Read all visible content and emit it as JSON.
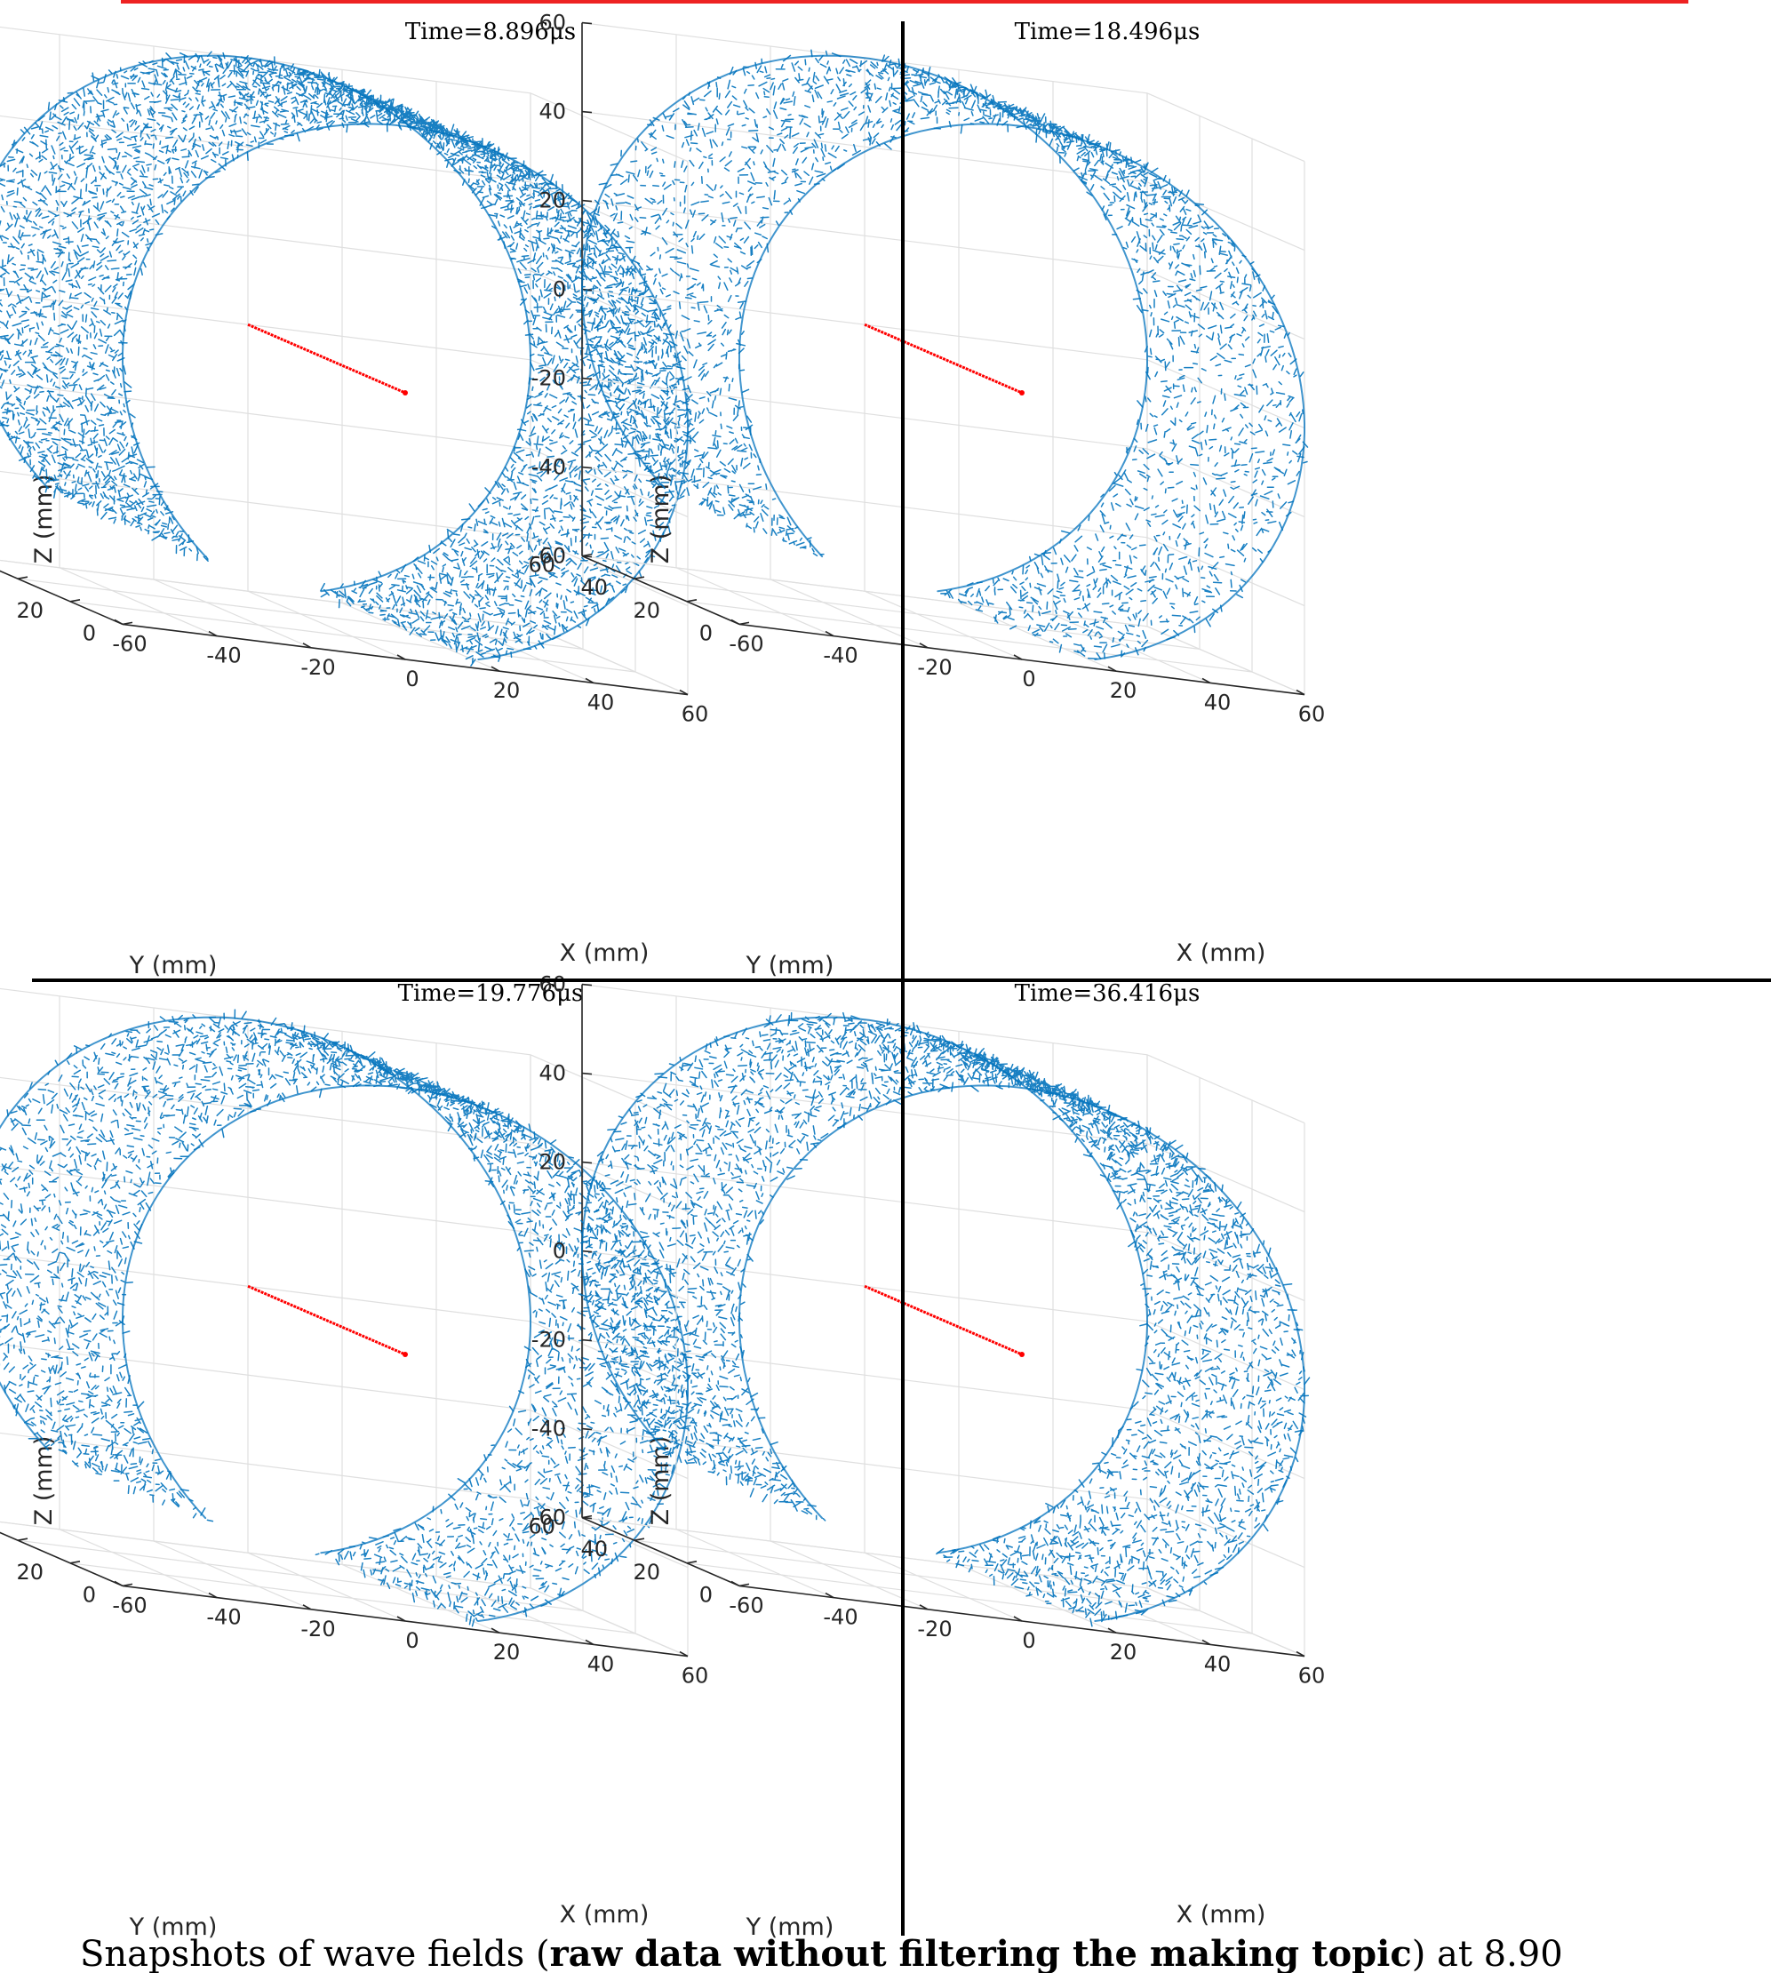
{
  "figure": {
    "colors": {
      "vector_field": "#0072BD",
      "source_line": "#ff0000",
      "top_rule": "#ee2222",
      "axes": "#262626",
      "grid": "#dfdfdf",
      "separators": "#000000"
    },
    "caption": {
      "prefix": "Snapshots of wave fields (",
      "bold": "raw data without filtering the making topic",
      "suffix": ") at 8.90"
    }
  },
  "chart_data": [
    {
      "type": "3d-quiver",
      "title": "Time=8.896μs",
      "xlabel": "X (mm)",
      "ylabel": "Y (mm)",
      "zlabel": "Z (mm)",
      "xlim": [
        -60,
        60
      ],
      "ylim": [
        0,
        60
      ],
      "zlim": [
        -60,
        60
      ],
      "x_ticks": [
        "-60",
        "-40",
        "-20",
        "0",
        "20",
        "40",
        "60"
      ],
      "y_ticks": [
        "0",
        "20",
        "40",
        "60"
      ],
      "z_ticks": [
        "-60",
        "-40",
        "-20",
        "0",
        "20",
        "40",
        "60"
      ],
      "grid": true,
      "surface": {
        "shape": "cylindrical shell",
        "radius_mm": 60,
        "arc_deg": [
          -75,
          225
        ]
      },
      "source_line": {
        "from": [
          0,
          60,
          0
        ],
        "to": [
          0,
          0,
          0
        ]
      },
      "density": 0.95
    },
    {
      "type": "3d-quiver",
      "title": "Time=18.496μs",
      "xlabel": "X (mm)",
      "ylabel": "Y (mm)",
      "zlabel": "Z (mm)",
      "xlim": [
        -60,
        60
      ],
      "ylim": [
        0,
        60
      ],
      "zlim": [
        -60,
        60
      ],
      "x_ticks": [
        "-60",
        "-40",
        "-20",
        "0",
        "20",
        "40",
        "60"
      ],
      "y_ticks": [
        "0",
        "20",
        "40",
        "60"
      ],
      "z_ticks": [
        "-60",
        "-40",
        "-20",
        "0",
        "20",
        "40",
        "60"
      ],
      "grid": true,
      "surface": {
        "shape": "cylindrical shell",
        "radius_mm": 60,
        "arc_deg": [
          -75,
          225
        ]
      },
      "source_line": {
        "from": [
          0,
          60,
          0
        ],
        "to": [
          0,
          0,
          0
        ]
      },
      "density": 0.55
    },
    {
      "type": "3d-quiver",
      "title": "Time=19.776μs",
      "xlabel": "X (mm)",
      "ylabel": "Y (mm)",
      "zlabel": "Z (mm)",
      "xlim": [
        -60,
        60
      ],
      "ylim": [
        0,
        60
      ],
      "zlim": [
        -60,
        60
      ],
      "x_ticks": [
        "-60",
        "-40",
        "-20",
        "0",
        "20",
        "40",
        "60"
      ],
      "y_ticks": [
        "0",
        "20",
        "40",
        "60"
      ],
      "z_ticks": [
        "-60",
        "-40",
        "-20",
        "0",
        "20",
        "40",
        "60"
      ],
      "grid": true,
      "surface": {
        "shape": "cylindrical shell",
        "radius_mm": 60,
        "arc_deg": [
          -75,
          225
        ]
      },
      "source_line": {
        "from": [
          0,
          60,
          0
        ],
        "to": [
          0,
          0,
          0
        ]
      },
      "density": 0.65
    },
    {
      "type": "3d-quiver",
      "title": "Time=36.416μs",
      "xlabel": "X (mm)",
      "ylabel": "Y (mm)",
      "zlabel": "Z (mm)",
      "xlim": [
        -60,
        60
      ],
      "ylim": [
        0,
        60
      ],
      "zlim": [
        -60,
        60
      ],
      "x_ticks": [
        "-60",
        "-40",
        "-20",
        "0",
        "20",
        "40",
        "60"
      ],
      "y_ticks": [
        "0",
        "20",
        "40",
        "60"
      ],
      "z_ticks": [
        "-60",
        "-40",
        "-20",
        "0",
        "20",
        "40",
        "60"
      ],
      "grid": true,
      "surface": {
        "shape": "cylindrical shell",
        "radius_mm": 60,
        "arc_deg": [
          -75,
          225
        ]
      },
      "source_line": {
        "from": [
          0,
          60,
          0
        ],
        "to": [
          0,
          0,
          0
        ]
      },
      "density": 0.75
    }
  ]
}
